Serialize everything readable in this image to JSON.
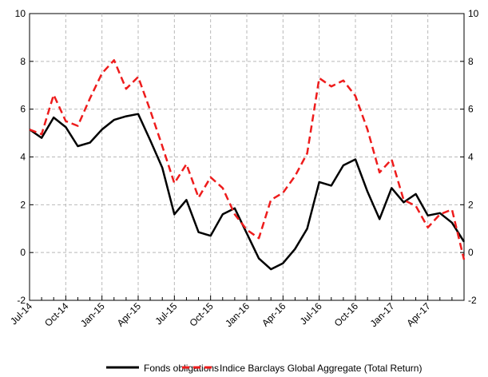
{
  "chart_data": {
    "type": "line",
    "title": "",
    "xlabel": "",
    "ylabel": "",
    "ylim": [
      -2,
      10
    ],
    "y_ticks": [
      -2,
      0,
      2,
      4,
      6,
      8,
      10
    ],
    "y_axis_mirrored_right": true,
    "grid": true,
    "legend_placement": "bottom-center",
    "x": [
      "2014-07",
      "2014-08",
      "2014-09",
      "2014-10",
      "2014-11",
      "2014-12",
      "2015-01",
      "2015-02",
      "2015-03",
      "2015-04",
      "2015-05",
      "2015-06",
      "2015-07",
      "2015-08",
      "2015-09",
      "2015-10",
      "2015-11",
      "2015-12",
      "2016-01",
      "2016-02",
      "2016-03",
      "2016-04",
      "2016-05",
      "2016-06",
      "2016-07",
      "2016-08",
      "2016-09",
      "2016-10",
      "2016-11",
      "2016-12",
      "2017-01",
      "2017-02",
      "2017-03",
      "2017-04",
      "2017-05",
      "2017-06"
    ],
    "x_tick_labels": [
      {
        "index": 0,
        "label": "Jul-14"
      },
      {
        "index": 3,
        "label": "Oct-14"
      },
      {
        "index": 6,
        "label": "Jan-15"
      },
      {
        "index": 9,
        "label": "Apr-15"
      },
      {
        "index": 12,
        "label": "Jul-15"
      },
      {
        "index": 15,
        "label": "Oct-15"
      },
      {
        "index": 18,
        "label": "Jan-16"
      },
      {
        "index": 21,
        "label": "Apr-16"
      },
      {
        "index": 24,
        "label": "Jul-16"
      },
      {
        "index": 27,
        "label": "Oct-16"
      },
      {
        "index": 30,
        "label": "Jan-17"
      },
      {
        "index": 33,
        "label": "Apr-17"
      }
    ],
    "series": [
      {
        "name": "Fonds obligations",
        "color": "#000000",
        "style": "solid",
        "values": [
          5.15,
          4.8,
          5.65,
          5.25,
          4.45,
          4.6,
          5.15,
          5.55,
          5.7,
          5.8,
          4.7,
          3.55,
          1.6,
          2.2,
          0.85,
          0.7,
          1.6,
          1.85,
          0.8,
          -0.25,
          -0.7,
          -0.45,
          0.15,
          1.0,
          2.95,
          2.8,
          3.65,
          3.9,
          2.55,
          1.4,
          2.7,
          2.1,
          2.45,
          1.55,
          1.65,
          1.25
        ]
      },
      {
        "name": "Indice Barclays Global Aggregate (Total Return)",
        "color": "#ee1c1c",
        "style": "dashed",
        "values": [
          5.15,
          4.95,
          6.6,
          5.5,
          5.3,
          6.45,
          7.5,
          8.05,
          6.85,
          7.35,
          5.95,
          4.45,
          2.9,
          3.7,
          2.3,
          3.15,
          2.7,
          1.6,
          0.95,
          0.6,
          2.2,
          2.5,
          3.2,
          4.15,
          7.3,
          6.95,
          7.2,
          6.55,
          5.15,
          3.35,
          3.9,
          2.2,
          1.95,
          1.05,
          1.6,
          1.8
        ]
      }
    ],
    "series_end_extension": {
      "Fonds obligations": 0.45,
      "Indice Barclays Global Aggregate (Total Return)": -0.3
    }
  }
}
